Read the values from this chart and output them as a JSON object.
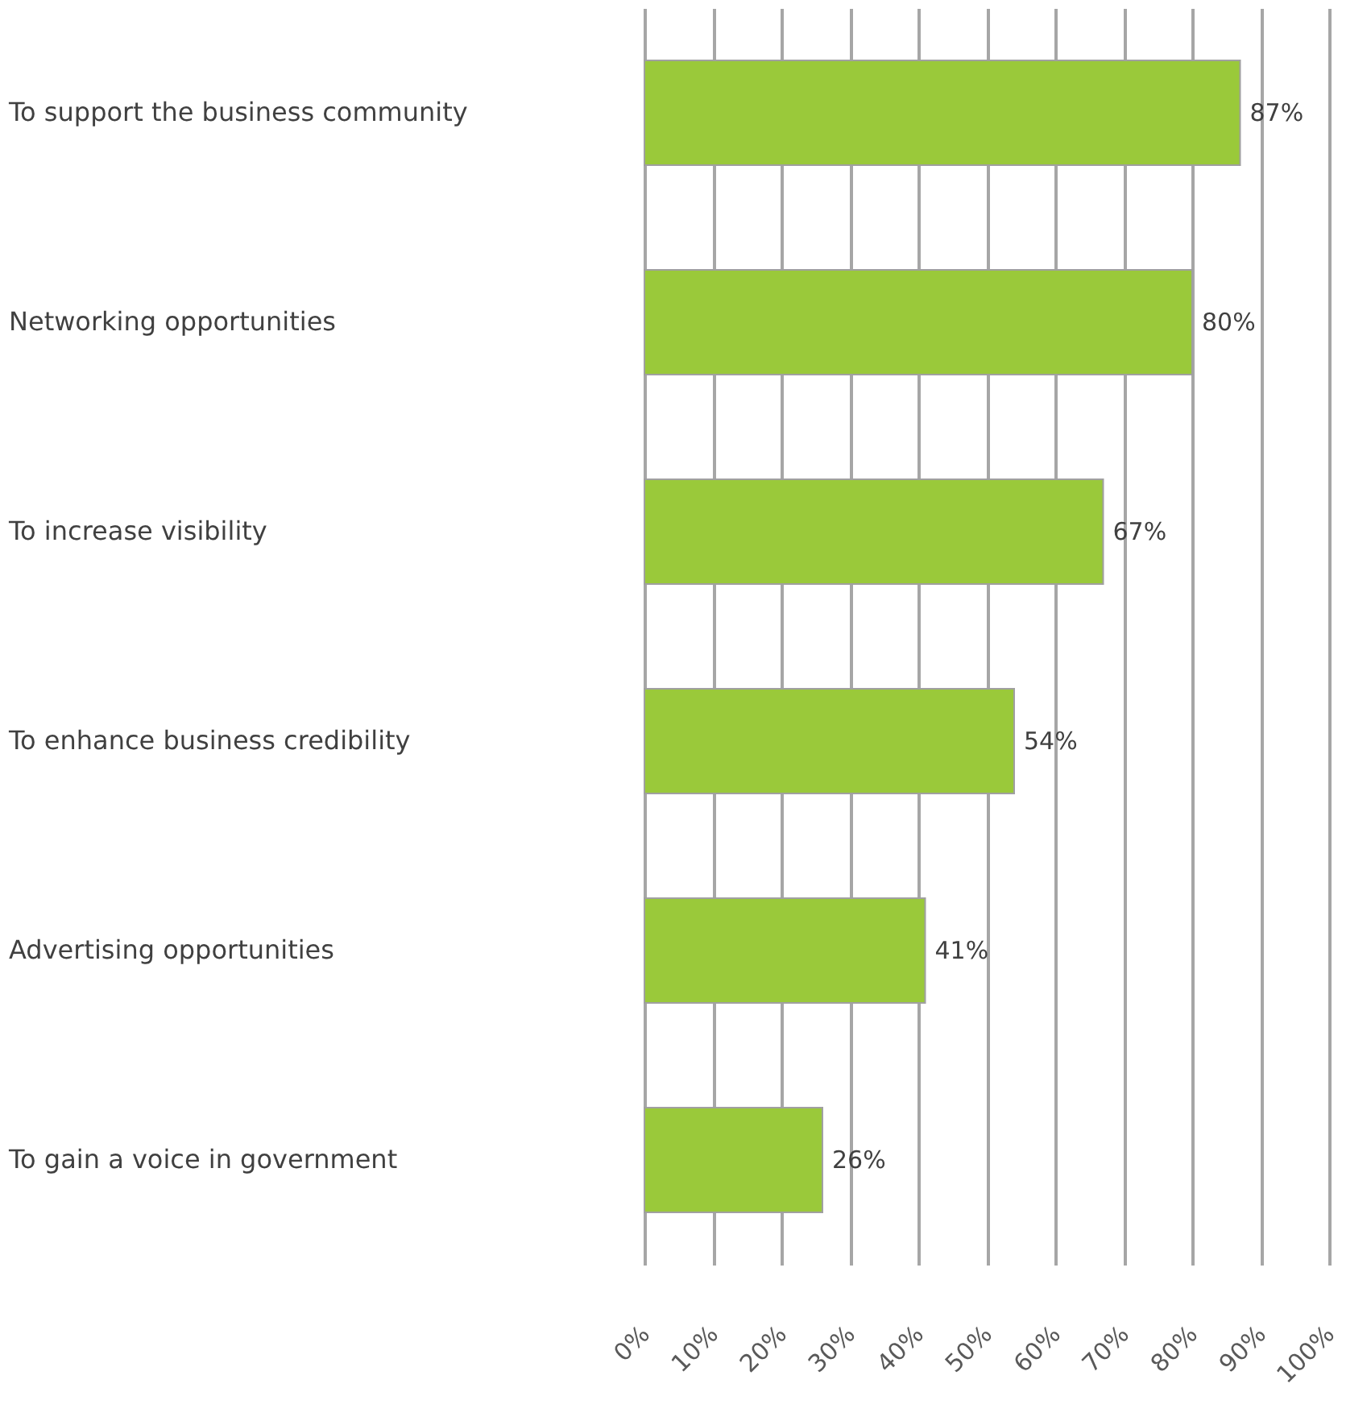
{
  "chart_data": {
    "type": "bar",
    "orientation": "horizontal",
    "categories": [
      "To support the business community",
      "Networking opportunities",
      "To increase visibility",
      "To enhance business credibility",
      "Advertising opportunities",
      "To gain a voice in government"
    ],
    "values": [
      87,
      80,
      67,
      54,
      41,
      26
    ],
    "value_labels": [
      "87%",
      "80%",
      "67%",
      "54%",
      "41%",
      "26%"
    ],
    "color": "#9ac93a",
    "xlim": [
      0,
      100
    ],
    "xticks": [
      {
        "value": 0,
        "label": "0%"
      },
      {
        "value": 10,
        "label": "10%"
      },
      {
        "value": 20,
        "label": "20%"
      },
      {
        "value": 30,
        "label": "30%"
      },
      {
        "value": 40,
        "label": "40%"
      },
      {
        "value": 50,
        "label": "50%"
      },
      {
        "value": 60,
        "label": "60%"
      },
      {
        "value": 70,
        "label": "70%"
      },
      {
        "value": 80,
        "label": "80%"
      },
      {
        "value": 90,
        "label": "90%"
      },
      {
        "value": 100,
        "label": "100%"
      }
    ],
    "grid": "x"
  }
}
